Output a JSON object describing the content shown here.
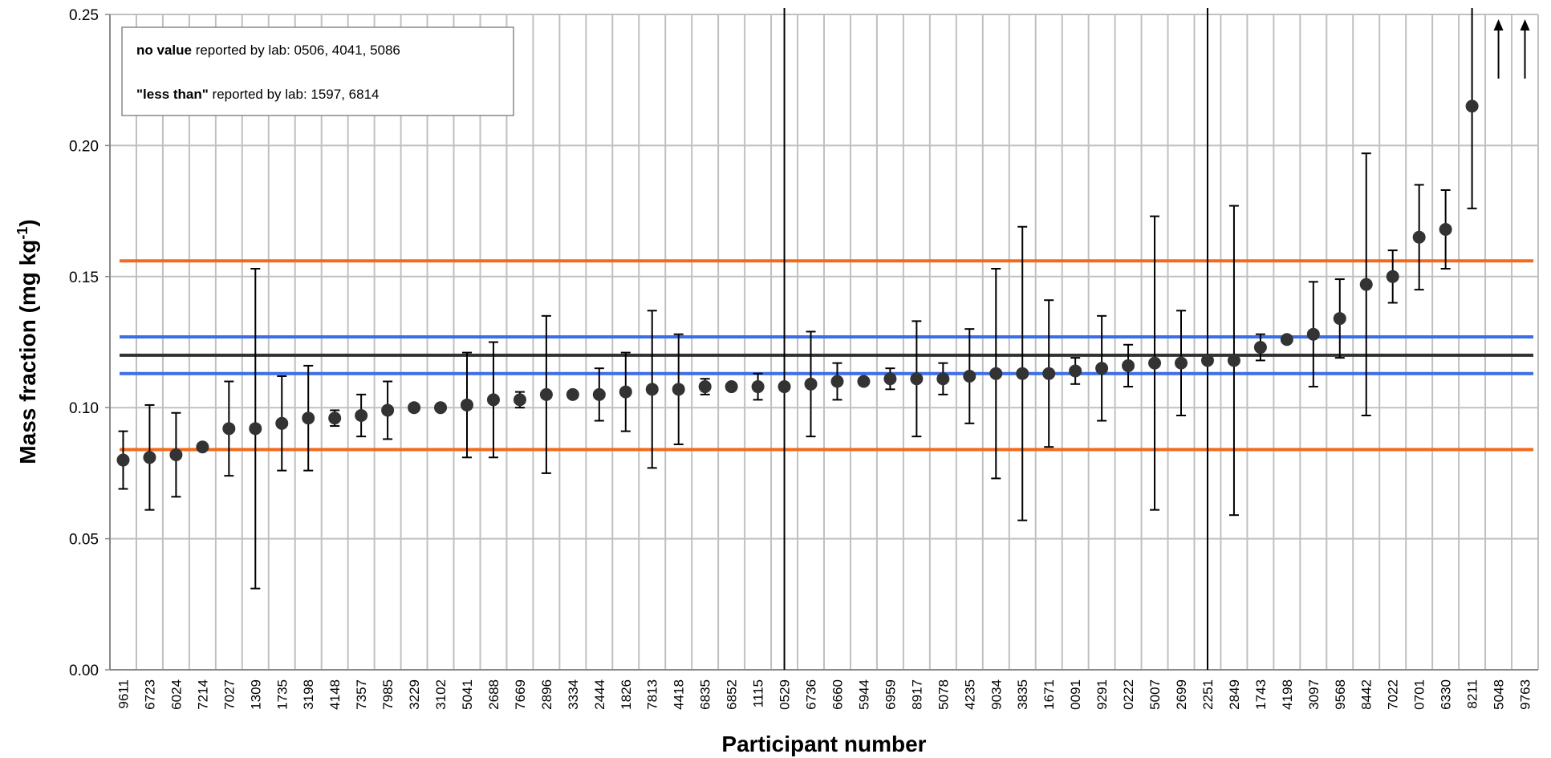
{
  "chart_data": {
    "type": "errorbar",
    "x_label": "Participant number",
    "y_label": {
      "text": "Mass fraction (mg kg",
      "sup": "-1",
      "end": ")"
    },
    "notes": [
      {
        "bold": "no value",
        "text": " reported by lab: 0506, 4041, 5086"
      },
      {
        "bold": "\"less than\"",
        "text": " reported by lab: 1597, 6814"
      }
    ],
    "categories": [
      "9611",
      "6723",
      "6024",
      "7214",
      "7027",
      "1309",
      "1735",
      "3198",
      "4148",
      "7357",
      "7985",
      "3229",
      "3102",
      "5041",
      "2688",
      "7669",
      "2896",
      "3334",
      "2444",
      "1826",
      "7813",
      "4418",
      "6835",
      "6852",
      "1115",
      "0529",
      "6736",
      "6660",
      "5944",
      "6959",
      "8917",
      "5078",
      "4235",
      "9034",
      "3835",
      "1671",
      "0091",
      "9291",
      "0222",
      "5007",
      "2699",
      "2251",
      "2849",
      "1743",
      "4198",
      "3097",
      "9568",
      "8442",
      "7022",
      "0701",
      "6330",
      "8211",
      "5048",
      "9763"
    ],
    "values": [
      0.08,
      0.081,
      0.082,
      0.085,
      0.092,
      0.092,
      0.094,
      0.096,
      0.096,
      0.097,
      0.099,
      0.1,
      0.1,
      0.101,
      0.103,
      0.103,
      0.105,
      0.105,
      0.105,
      0.106,
      0.107,
      0.107,
      0.108,
      0.108,
      0.108,
      0.108,
      0.109,
      0.11,
      0.11,
      0.111,
      0.111,
      0.111,
      0.112,
      0.113,
      0.113,
      0.113,
      0.114,
      0.115,
      0.116,
      0.117,
      0.117,
      0.118,
      0.118,
      0.123,
      0.126,
      0.128,
      0.134,
      0.147,
      0.15,
      0.165,
      0.168,
      0.215,
      null,
      null
    ],
    "errors": [
      0.011,
      0.02,
      0.016,
      null,
      0.018,
      0.061,
      0.018,
      0.02,
      0.003,
      0.008,
      0.011,
      null,
      null,
      0.02,
      0.022,
      0.003,
      0.03,
      null,
      0.01,
      0.015,
      0.03,
      0.021,
      0.003,
      null,
      0.005,
      0.3,
      0.02,
      0.007,
      0.001,
      0.004,
      0.022,
      0.006,
      0.018,
      0.04,
      0.056,
      0.028,
      0.005,
      0.02,
      0.008,
      0.056,
      0.02,
      0.3,
      0.059,
      0.005,
      null,
      0.02,
      0.015,
      0.05,
      0.01,
      0.02,
      0.015,
      0.039,
      null,
      null
    ],
    "color": "#333333",
    "hlines": [
      {
        "value": 0.156,
        "color": "#f26b1d"
      },
      {
        "value": 0.084,
        "color": "#f26b1d"
      },
      {
        "value": 0.127,
        "color": "#3c6ee6"
      },
      {
        "value": 0.113,
        "color": "#3c6ee6"
      },
      {
        "value": 0.12,
        "color": "#333333"
      }
    ],
    "ylim": [
      0,
      0.25
    ],
    "yticks": [
      {
        "value": 0,
        "label": "0.00"
      },
      0.05,
      {
        "value": 0.1,
        "label": "0.10"
      },
      0.15,
      {
        "value": 0.2,
        "label": "0.20"
      },
      0.25
    ],
    "grid": true
  }
}
